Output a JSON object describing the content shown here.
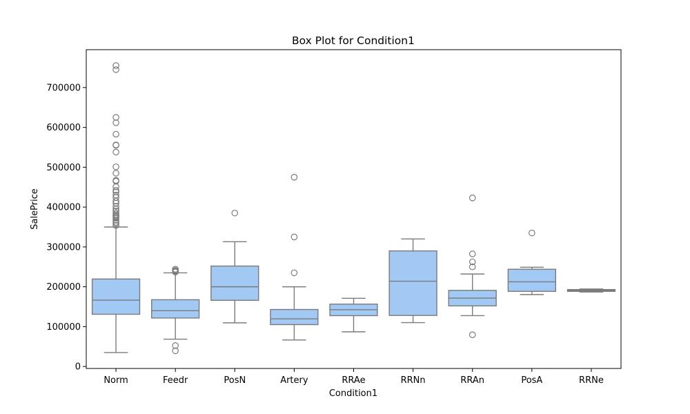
{
  "chart_data": {
    "type": "box",
    "title": "Box Plot for Condition1",
    "xlabel": "Condition1",
    "ylabel": "SalePrice",
    "ylim": [
      -5000,
      795000
    ],
    "yticks": [
      0,
      100000,
      200000,
      300000,
      400000,
      500000,
      600000,
      700000
    ],
    "ytick_labels": [
      "0",
      "100000",
      "200000",
      "300000",
      "400000",
      "500000",
      "600000",
      "700000"
    ],
    "grid": false,
    "colors": {
      "box_fill": "#a1c9f4",
      "box_edge": "#7a7a7a",
      "axis": "#000000"
    },
    "categories": [
      "Norm",
      "Feedr",
      "PosN",
      "Artery",
      "RRAe",
      "RRNn",
      "RRAn",
      "PosA",
      "RRNe"
    ],
    "boxes": [
      {
        "category": "Norm",
        "whisker_low": 34900,
        "q1": 131000,
        "median": 166500,
        "q3": 219500,
        "whisker_high": 350000,
        "outliers": [
          354000,
          359000,
          362000,
          367000,
          372000,
          375000,
          378000,
          381000,
          385000,
          390000,
          395000,
          402000,
          410000,
          415000,
          424000,
          430000,
          438000,
          442000,
          451000,
          465000,
          467000,
          485000,
          501000,
          538000,
          555000,
          556000,
          582900,
          611657,
          625000,
          745000,
          755000
        ]
      },
      {
        "category": "Feedr",
        "whisker_low": 68500,
        "q1": 121600,
        "median": 140000,
        "q3": 167500,
        "whisker_high": 235000,
        "outliers": [
          39300,
          52500,
          237000,
          239000,
          241000,
          244000
        ]
      },
      {
        "category": "PosN",
        "whisker_low": 109500,
        "q1": 166000,
        "median": 200000,
        "q3": 252000,
        "whisker_high": 313000,
        "outliers": [
          385000
        ]
      },
      {
        "category": "Artery",
        "whisker_low": 66500,
        "q1": 105000,
        "median": 119550,
        "q3": 143000,
        "whisker_high": 200000,
        "outliers": [
          235000,
          325000,
          475000
        ]
      },
      {
        "category": "RRAe",
        "whisker_low": 87000,
        "q1": 127500,
        "median": 142500,
        "q3": 156500,
        "whisker_high": 171000,
        "outliers": []
      },
      {
        "category": "RRNn",
        "whisker_low": 110000,
        "q1": 128000,
        "median": 214000,
        "q3": 290000,
        "whisker_high": 320000,
        "outliers": []
      },
      {
        "category": "RRAn",
        "whisker_low": 127500,
        "q1": 152000,
        "median": 171495,
        "q3": 191000,
        "whisker_high": 232000,
        "outliers": [
          79500,
          250000,
          262500,
          282500,
          423000
        ]
      },
      {
        "category": "PosA",
        "whisker_low": 180500,
        "q1": 188500,
        "median": 212500,
        "q3": 244000,
        "whisker_high": 249000,
        "outliers": [
          335000
        ]
      },
      {
        "category": "RRNe",
        "whisker_low": 187000,
        "q1": 188500,
        "median": 190750,
        "q3": 193000,
        "whisker_high": 194500,
        "outliers": []
      }
    ]
  }
}
